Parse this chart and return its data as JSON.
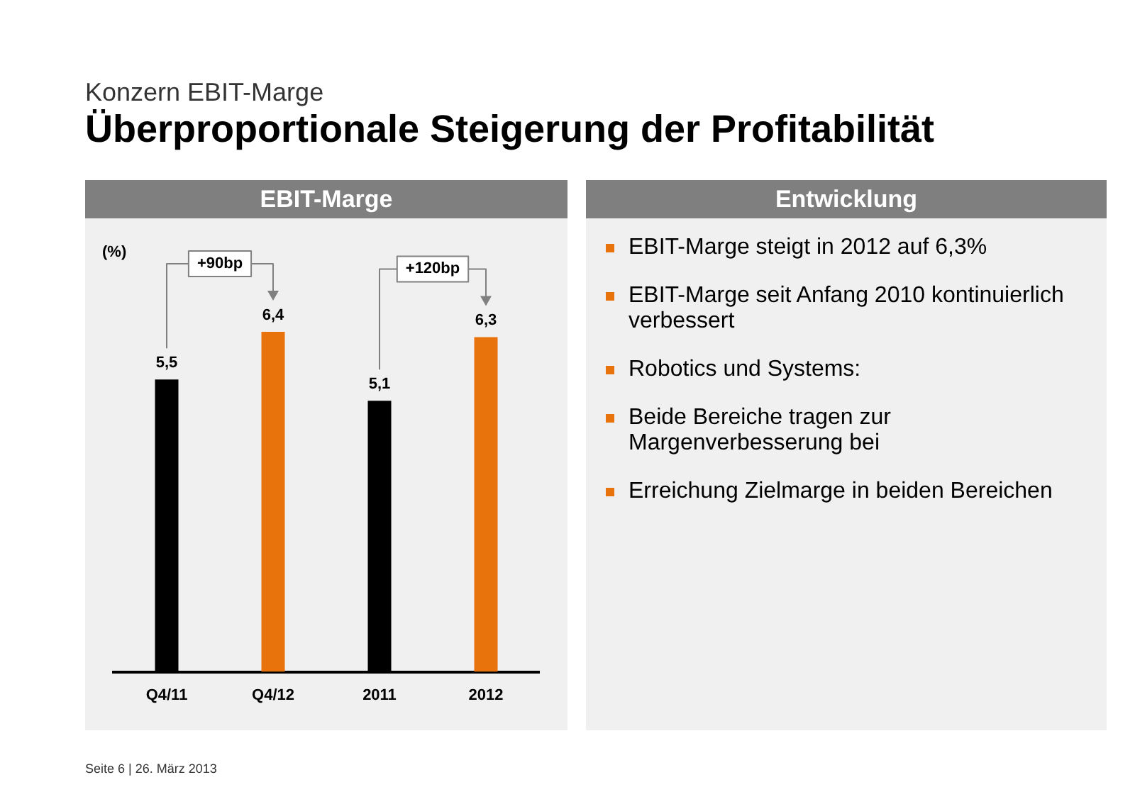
{
  "chart_data": [
    {
      "type": "bar",
      "title": "EBIT-Marge",
      "ylabel": "(%)",
      "categories": [
        "Q4/11",
        "Q4/12",
        "2011",
        "2012"
      ],
      "values": [
        5.5,
        6.4,
        5.1,
        6.3
      ],
      "colors": [
        "#000000",
        "#e8720c",
        "#000000",
        "#e8720c"
      ],
      "value_labels": [
        "5,5",
        "6,4",
        "5,1",
        "6,3"
      ],
      "annotations": [
        "Konzern EBIT-Marge",
        "Überproportionale Steigerung der Profitabilität",
        "+90bp",
        "+120bp",
        "Seite 6 | 26. März 2013"
      ],
      "grid": false,
      "legend": false
    },
    {
      "type": "other",
      "title": "Entwicklung",
      "annotations": [
        "EBIT-Marge steigt in 2012 auf 6,3%",
        "EBIT-Marge seit Anfang 2010 kontinuierlich verbessert",
        "Robotics und Systems:",
        "Beide Bereiche tragen zur Margenverbesserung bei",
        "Erreichung Zielmarge in beiden Bereichen"
      ]
    }
  ]
}
